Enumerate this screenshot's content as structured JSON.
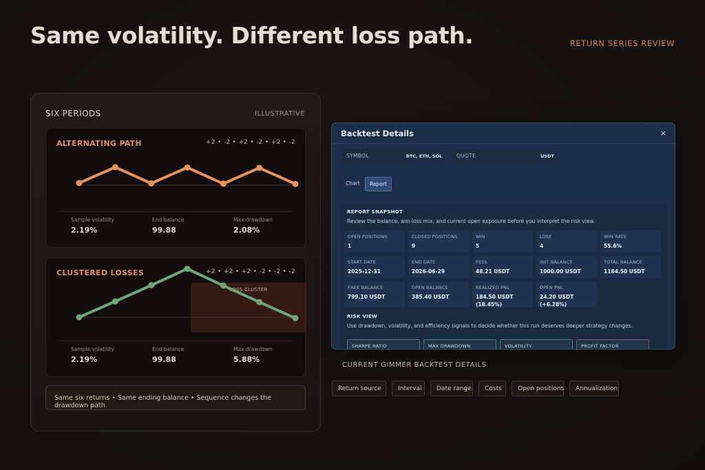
{
  "headline": "Same volatility. Different loss path.",
  "kicker": "RETURN SERIES REVIEW",
  "left_panel": {
    "title": "SIX PERIODS",
    "tag": "ILLUSTRATIVE",
    "alternating": {
      "title": "ALTERNATING PATH",
      "sequence": "+2 • -2 • +2 • -2 • +2 • -2",
      "returns": [
        2,
        -2,
        2,
        -2,
        2,
        -2
      ],
      "color": "#e8935a",
      "stats": [
        {
          "label": "Sample volatility",
          "value": "2.19%"
        },
        {
          "label": "End balance",
          "value": "99.88"
        },
        {
          "label": "Max drawdown",
          "value": "2.08%"
        }
      ]
    },
    "clustered": {
      "title": "CLUSTERED LOSSES",
      "sequence": "+2 • +2 • +2 • -2 • -2 • -2",
      "returns": [
        2,
        2,
        2,
        -2,
        -2,
        -2
      ],
      "color": "#6ea87a",
      "cluster_label": "LOSS CLUSTER",
      "stats": [
        {
          "label": "Sample volatility",
          "value": "2.19%"
        },
        {
          "label": "End balance",
          "value": "99.88"
        },
        {
          "label": "Max drawdown",
          "value": "5.88%"
        }
      ]
    },
    "footer": "Same six returns • Same ending balance • Sequence changes the drawdown path"
  },
  "modal": {
    "title": "Backtest Details",
    "close": "×",
    "symbol_label": "SYMBOL",
    "symbol_value": "BTC, ETH, SOL",
    "quote_label": "QUOTE",
    "quote_value": "USDT",
    "tabs": [
      {
        "label": "Chart",
        "active": false
      },
      {
        "label": "Report",
        "active": true
      }
    ],
    "snapshot_heading": "REPORT SNAPSHOT",
    "snapshot_desc": "Review the balance, win-loss mix, and current open exposure before you interpret the risk view.",
    "metrics": [
      [
        {
          "label": "OPEN POSITIONS",
          "value": "1"
        },
        {
          "label": "CLOSED POSITIONS",
          "value": "9"
        },
        {
          "label": "WIN",
          "value": "5"
        },
        {
          "label": "LOSE",
          "value": "4"
        },
        {
          "label": "WIN RATE",
          "value": "55.6%"
        }
      ],
      [
        {
          "label": "START DATE",
          "value": "2025-12-31"
        },
        {
          "label": "END DATE",
          "value": "2026-06-29"
        },
        {
          "label": "FEES",
          "value": "48.21 USDT"
        },
        {
          "label": "INIT BALANCE",
          "value": "1000.00 USDT"
        },
        {
          "label": "TOTAL BALANCE",
          "value": "1184.50 USDT"
        }
      ],
      [
        {
          "label": "FREE BALANCE",
          "value": "799.10 USDT"
        },
        {
          "label": "OPEN BALANCE",
          "value": "385.40 USDT"
        },
        {
          "label": "REALIZED PNL",
          "value": "184.50 USDT (18.45%)"
        },
        {
          "label": "OPEN PNL",
          "value": "24.20 USDT (+6.28%)"
        }
      ]
    ],
    "risk_heading": "RISK VIEW",
    "risk_desc": "Use drawdown, volatility, and efficiency signals to decide whether this run deserves deeper strategy changes.",
    "risk_cards": [
      {
        "label": "SHARPE RATIO",
        "color": "#5d6f86"
      },
      {
        "label": "MAX DRAWDOWN",
        "color": "#3f7c86"
      },
      {
        "label": "VOLATILITY",
        "color": "#3f7c86"
      },
      {
        "label": "PROFIT FACTOR",
        "color": "#7a5a78"
      }
    ]
  },
  "caption": "CURRENT GIMMER BACKTEST DETAILS",
  "chips": [
    "Return source",
    "Interval",
    "Date range",
    "Costs",
    "Open positions",
    "Annualization"
  ]
}
